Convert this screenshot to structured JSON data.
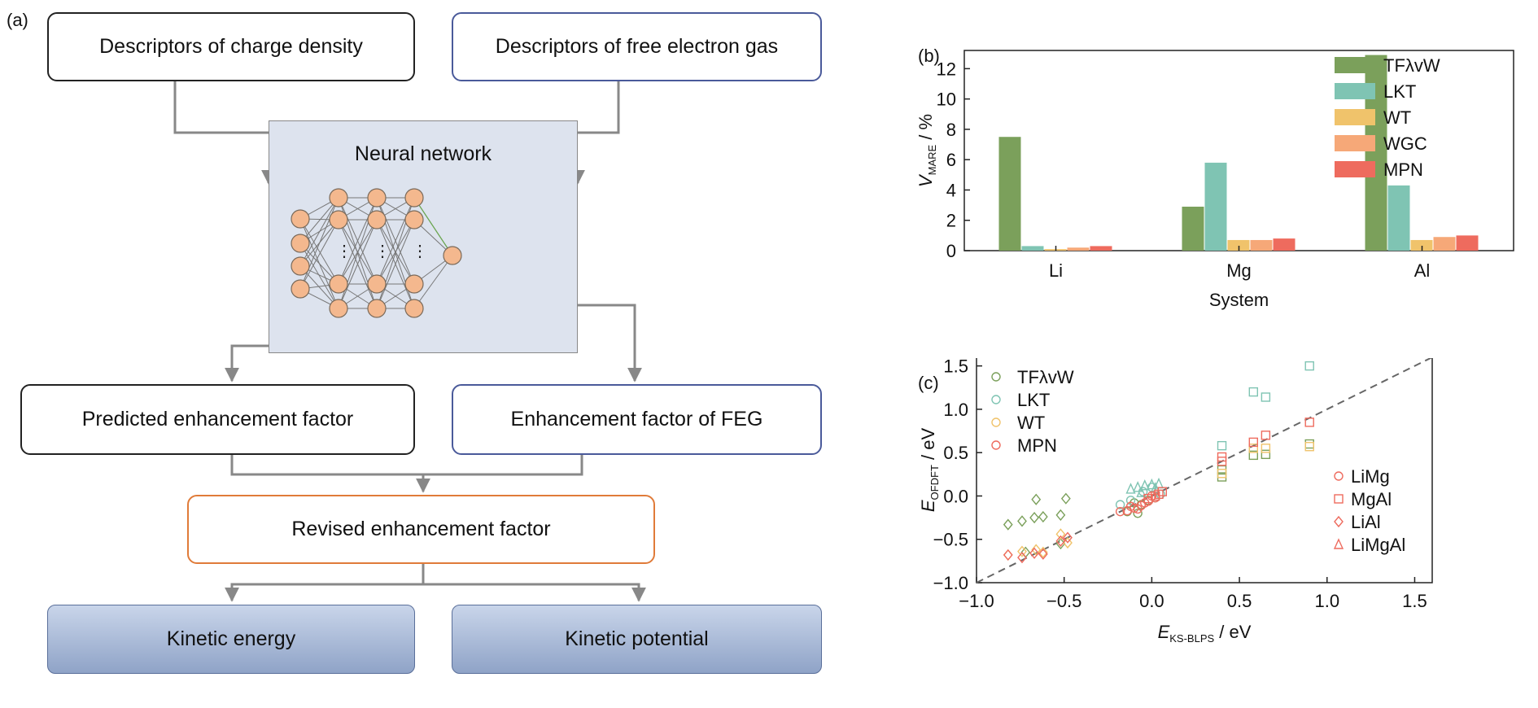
{
  "panel_labels": {
    "a": "(a)",
    "b": "(b)",
    "c": "(c)"
  },
  "flowchart": {
    "descriptors_charge": "Descriptors of charge density",
    "descriptors_feg": "Descriptors of free electron gas",
    "neural_network": "Neural network",
    "predicted_factor": "Predicted enhancement factor",
    "feg_factor": "Enhancement factor of FEG",
    "revised_factor": "Revised enhancement factor",
    "kinetic_energy": "Kinetic energy",
    "kinetic_potential": "Kinetic potential"
  },
  "colors": {
    "TFλvW": "#7ba05b",
    "LKT": "#7fc4b3",
    "WT": "#f0c36b",
    "WGC": "#f6a878",
    "MPN": "#ee6b5e"
  },
  "chart_data": [
    {
      "type": "bar",
      "categories": [
        "Li",
        "Mg",
        "Al"
      ],
      "series": [
        {
          "name": "TFλvW",
          "values": [
            7.5,
            2.9,
            12.9
          ]
        },
        {
          "name": "LKT",
          "values": [
            0.3,
            5.8,
            4.3
          ]
        },
        {
          "name": "WT",
          "values": [
            0.1,
            0.7,
            0.7
          ]
        },
        {
          "name": "WGC",
          "values": [
            0.2,
            0.7,
            0.9
          ]
        },
        {
          "name": "MPN",
          "values": [
            0.3,
            0.8,
            1.0
          ]
        }
      ],
      "xlabel": "System",
      "ylabel_main": "V",
      "ylabel_sub": "MARE",
      "ylabel_unit": " / %",
      "ylim": [
        0,
        13.2
      ],
      "yticks": [
        0,
        2,
        4,
        6,
        8,
        10,
        12
      ],
      "grid": false,
      "legend_position": "top-right"
    },
    {
      "type": "scatter",
      "xlabel_main": "E",
      "xlabel_sub": "KS-BLPS",
      "xlabel_unit": " / eV",
      "ylabel_main": "E",
      "ylabel_sub": "OFDFT",
      "ylabel_unit": " / eV",
      "xlim": [
        -1.0,
        1.6
      ],
      "ylim": [
        -1.0,
        1.6
      ],
      "xticks": [
        -1.0,
        -0.5,
        0.0,
        0.5,
        1.0,
        1.5
      ],
      "xtick_labels": [
        "−1.0",
        "−0.5",
        "0.0",
        "0.5",
        "1.0",
        "1.5"
      ],
      "yticks": [
        -1.0,
        -0.5,
        0.0,
        0.5,
        1.0,
        1.5
      ],
      "ytick_labels": [
        "−1.0",
        "−0.5",
        "0.0",
        "0.5",
        "1.0",
        "1.5"
      ],
      "reference_line": "y=x",
      "method_legend": [
        "TFλvW",
        "LKT",
        "WT",
        "MPN"
      ],
      "system_legend": [
        {
          "name": "LiMg",
          "marker": "circle"
        },
        {
          "name": "MgAl",
          "marker": "square"
        },
        {
          "name": "LiAl",
          "marker": "diamond"
        },
        {
          "name": "LiMgAl",
          "marker": "triangle"
        }
      ],
      "series": [
        {
          "method": "TFλvW",
          "system": "LiAl",
          "x": [
            -0.82,
            -0.74,
            -0.67,
            -0.62,
            -0.52,
            -0.49,
            -0.66,
            -0.52,
            -0.72
          ],
          "y": [
            -0.33,
            -0.29,
            -0.25,
            -0.24,
            -0.22,
            -0.03,
            -0.04,
            -0.55,
            -0.65
          ]
        },
        {
          "method": "TFλvW",
          "system": "MgAl",
          "x": [
            0.4,
            0.58,
            0.65,
            0.9,
            0.4
          ],
          "y": [
            0.22,
            0.47,
            0.48,
            0.6,
            0.3
          ]
        },
        {
          "method": "TFλvW",
          "system": "LiMg",
          "x": [
            -0.1,
            -0.06,
            -0.02,
            0.02,
            -0.14,
            -0.08
          ],
          "y": [
            -0.08,
            -0.1,
            -0.05,
            -0.02,
            -0.18,
            -0.2
          ]
        },
        {
          "method": "LKT",
          "system": "MgAl",
          "x": [
            0.4,
            0.58,
            0.65,
            0.9
          ],
          "y": [
            0.58,
            1.2,
            1.14,
            1.5
          ]
        },
        {
          "method": "LKT",
          "system": "LiMgAl",
          "x": [
            -0.12,
            -0.08,
            -0.04,
            0.0,
            0.04,
            -0.06,
            0.02
          ],
          "y": [
            0.08,
            0.1,
            0.12,
            0.13,
            0.14,
            0.04,
            0.09
          ]
        },
        {
          "method": "LKT",
          "system": "LiMg",
          "x": [
            -0.18,
            -0.12,
            -0.05,
            0.0,
            0.05
          ],
          "y": [
            -0.1,
            -0.05,
            0.05,
            0.1,
            0.02
          ]
        },
        {
          "method": "WT",
          "system": "MgAl",
          "x": [
            0.4,
            0.58,
            0.65,
            0.9
          ],
          "y": [
            0.26,
            0.55,
            0.55,
            0.57
          ]
        },
        {
          "method": "WT",
          "system": "LiAl",
          "x": [
            -0.82,
            -0.74,
            -0.66,
            -0.62,
            -0.52,
            -0.48
          ],
          "y": [
            -0.68,
            -0.64,
            -0.62,
            -0.65,
            -0.44,
            -0.54
          ]
        },
        {
          "method": "MPN",
          "system": "MgAl",
          "x": [
            0.4,
            0.58,
            0.65,
            0.9,
            0.4
          ],
          "y": [
            0.45,
            0.62,
            0.7,
            0.85,
            0.4
          ]
        },
        {
          "method": "MPN",
          "system": "LiAl",
          "x": [
            -0.82,
            -0.74,
            -0.67,
            -0.62,
            -0.52,
            -0.48
          ],
          "y": [
            -0.68,
            -0.71,
            -0.66,
            -0.67,
            -0.52,
            -0.48
          ]
        },
        {
          "method": "MPN",
          "system": "LiMg",
          "x": [
            -0.18,
            -0.14,
            -0.1,
            -0.06,
            -0.02,
            0.02,
            -0.08,
            -0.04,
            0.0,
            -0.12
          ],
          "y": [
            -0.18,
            -0.17,
            -0.14,
            -0.11,
            -0.06,
            -0.02,
            -0.15,
            -0.08,
            0.0,
            -0.12
          ]
        },
        {
          "method": "MPN",
          "system": "MgAl_small",
          "x": [
            0.02,
            0.04,
            0.06,
            -0.02
          ],
          "y": [
            0.0,
            0.02,
            0.05,
            -0.03
          ]
        }
      ]
    }
  ]
}
